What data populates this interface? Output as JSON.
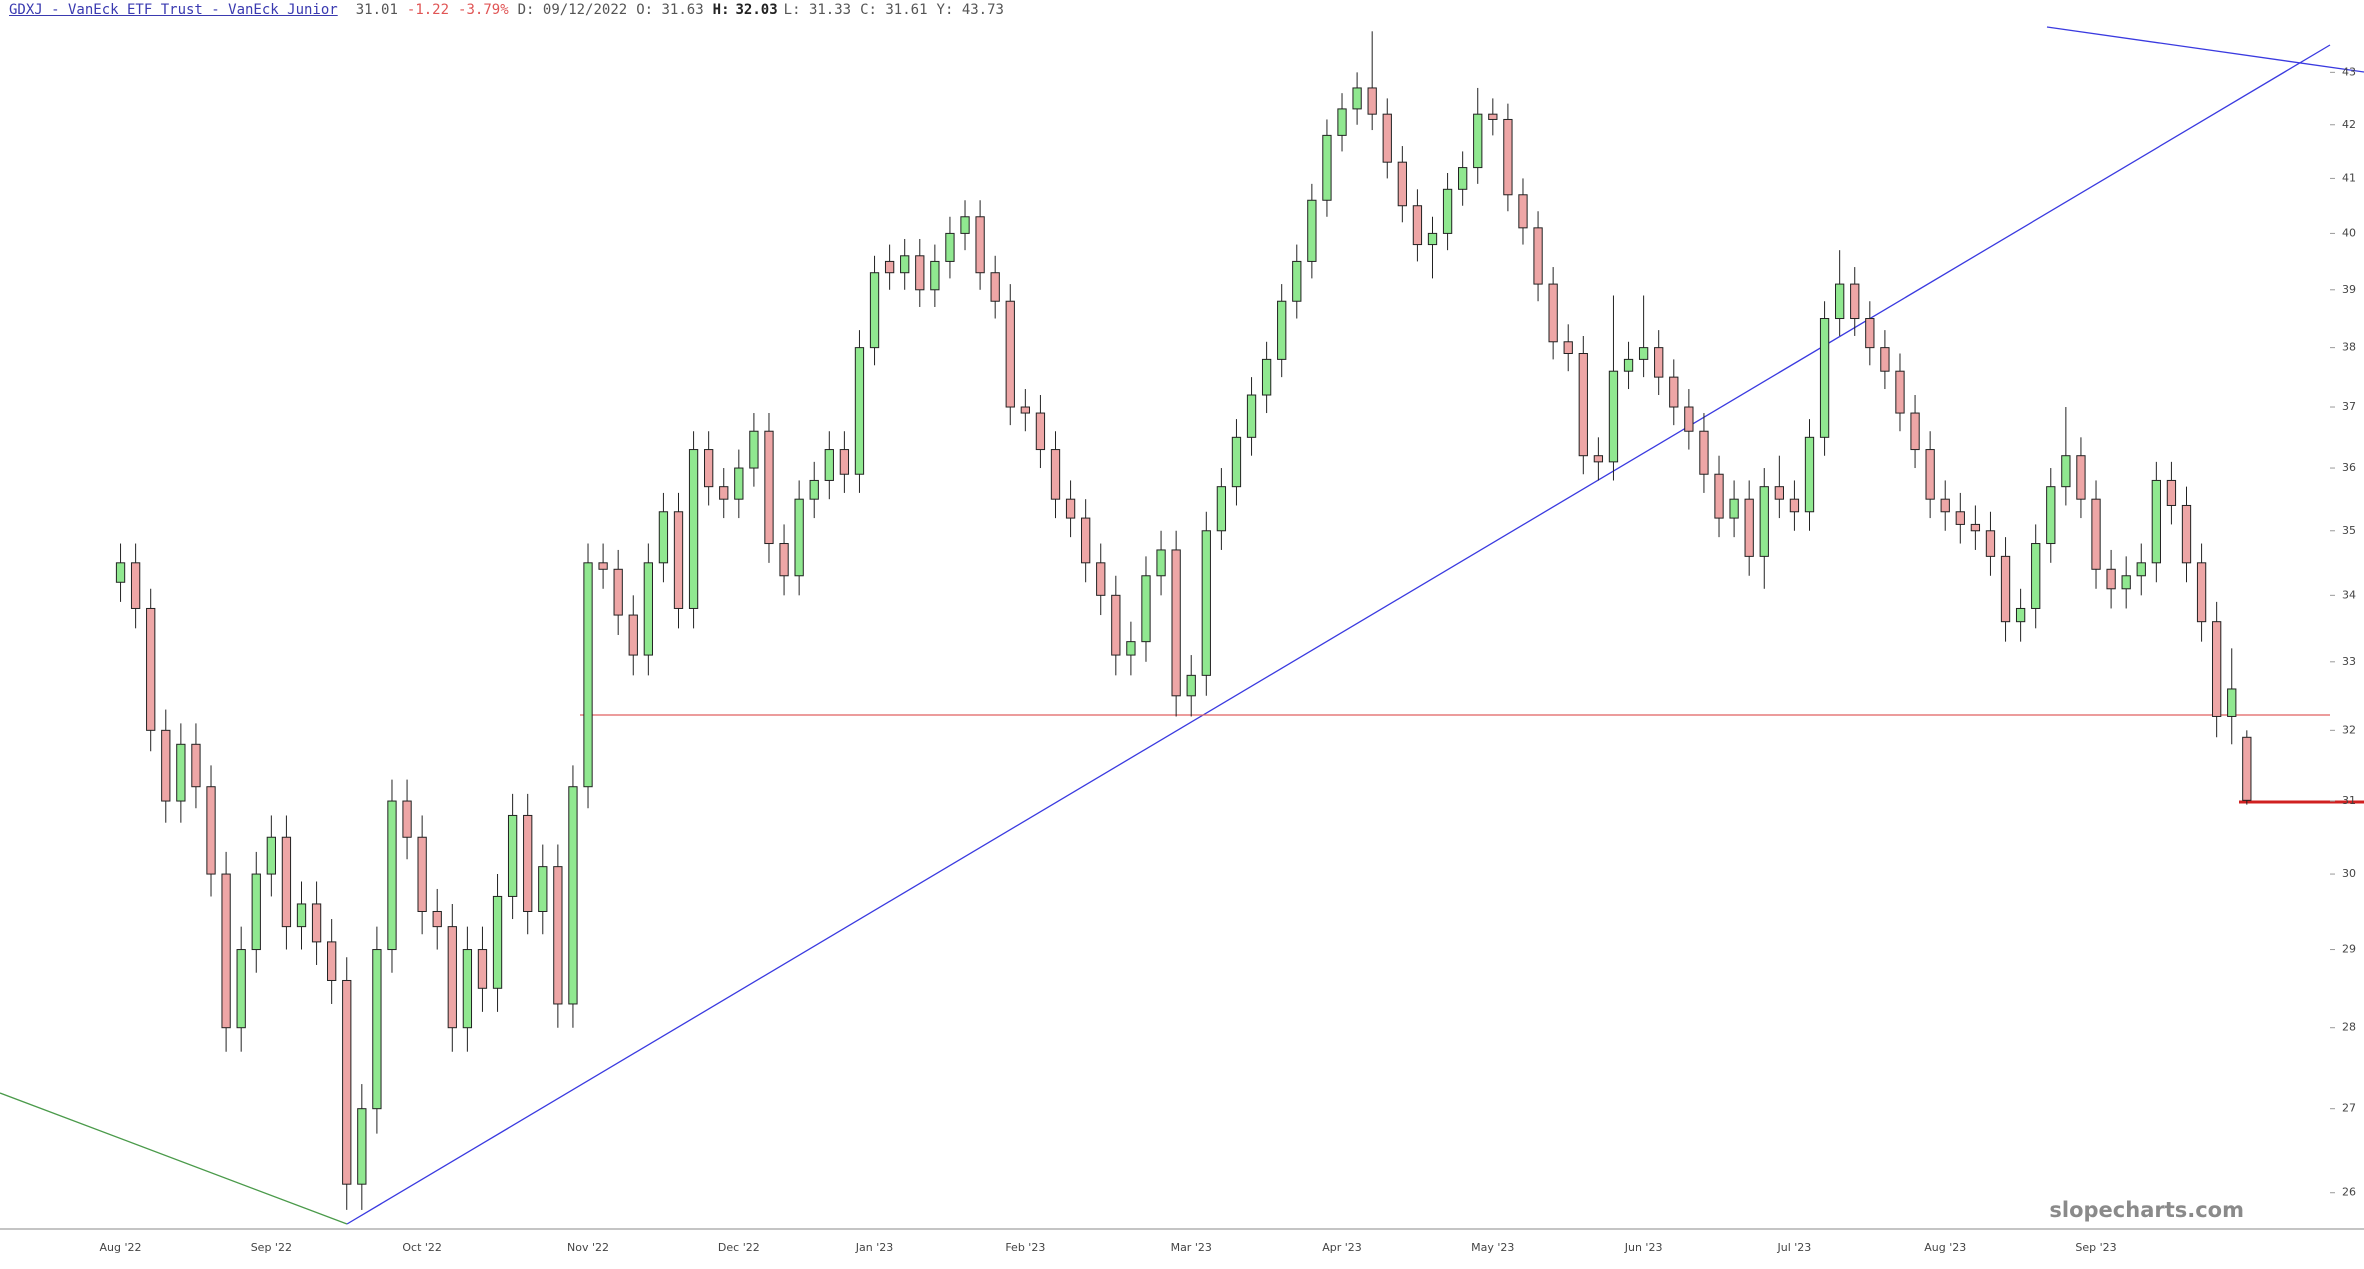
{
  "chart_data": {
    "type": "candlestick",
    "title": "GDXJ - VanEck ETF Trust - VanEck Junior",
    "quote": {
      "last": "31.01",
      "change": "-1.22",
      "change_pct": "-3.79%",
      "date": "D: 09/12/2022",
      "open": "O: 31.63",
      "high_label": "H:",
      "high": "32.03",
      "low": "L: 31.33",
      "close": "C: 31.61",
      "y": "Y: 43.73"
    },
    "watermark": "slopecharts.com",
    "log_scale": true,
    "ylim": [
      25.58,
      44.42
    ],
    "yticks": [
      26,
      27,
      28,
      29,
      30,
      31,
      32,
      33,
      34,
      35,
      36,
      37,
      38,
      39,
      40,
      41,
      42,
      43
    ],
    "up_color": "#90e890",
    "down_color": "#eea6a6",
    "categories": [
      "Aug '22",
      null,
      null,
      null,
      null,
      null,
      null,
      null,
      null,
      null,
      "Sep '22",
      null,
      null,
      null,
      null,
      null,
      null,
      null,
      null,
      null,
      "Oct '22",
      null,
      null,
      null,
      null,
      null,
      null,
      null,
      null,
      null,
      null,
      "Nov '22",
      null,
      null,
      null,
      null,
      null,
      null,
      null,
      null,
      null,
      "Dec '22",
      null,
      null,
      null,
      null,
      null,
      null,
      null,
      null,
      "Jan '23",
      null,
      null,
      null,
      null,
      null,
      null,
      null,
      null,
      null,
      "Feb '23",
      null,
      null,
      null,
      null,
      null,
      null,
      null,
      null,
      null,
      null,
      "Mar '23",
      null,
      null,
      null,
      null,
      null,
      null,
      null,
      null,
      null,
      "Apr '23",
      null,
      null,
      null,
      null,
      null,
      null,
      null,
      null,
      null,
      "May '23",
      null,
      null,
      null,
      null,
      null,
      null,
      null,
      null,
      null,
      "Jun '23",
      null,
      null,
      null,
      null,
      null,
      null,
      null,
      null,
      null,
      "Jul '23",
      null,
      null,
      null,
      null,
      null,
      null,
      null,
      null,
      null,
      "Aug '23",
      null,
      null,
      null,
      null,
      null,
      null,
      null,
      null,
      null,
      "Sep '23",
      null,
      null,
      null,
      null,
      null,
      null,
      null,
      null,
      null,
      null
    ],
    "series": [
      {
        "name": "GDXJ",
        "ohlc": [
          [
            34.2,
            34.8,
            33.9,
            34.5
          ],
          [
            34.5,
            34.8,
            33.5,
            33.8
          ],
          [
            33.8,
            34.1,
            31.7,
            32
          ],
          [
            32,
            32.3,
            30.7,
            31
          ],
          [
            31,
            32.1,
            30.7,
            31.8
          ],
          [
            31.8,
            32.1,
            30.9,
            31.2
          ],
          [
            31.2,
            31.5,
            29.7,
            30
          ],
          [
            30,
            30.3,
            27.7,
            28
          ],
          [
            28,
            29.3,
            27.7,
            29
          ],
          [
            29,
            30.3,
            28.7,
            30
          ],
          [
            30,
            30.8,
            29.7,
            30.5
          ],
          [
            30.5,
            30.8,
            29,
            29.3
          ],
          [
            29.3,
            29.9,
            29,
            29.6
          ],
          [
            29.6,
            29.9,
            28.8,
            29.1
          ],
          [
            29.1,
            29.4,
            28.3,
            28.6
          ],
          [
            28.6,
            28.9,
            25.8,
            26.1
          ],
          [
            26.1,
            27.3,
            25.8,
            27
          ],
          [
            27,
            29.3,
            26.7,
            29
          ],
          [
            29,
            31.3,
            28.7,
            31
          ],
          [
            31,
            31.3,
            30.2,
            30.5
          ],
          [
            30.5,
            30.8,
            29.2,
            29.5
          ],
          [
            29.5,
            29.8,
            29,
            29.3
          ],
          [
            29.3,
            29.6,
            27.7,
            28
          ],
          [
            28,
            29.3,
            27.7,
            29
          ],
          [
            29,
            29.3,
            28.2,
            28.5
          ],
          [
            28.5,
            30,
            28.2,
            29.7
          ],
          [
            29.7,
            31.1,
            29.4,
            30.8
          ],
          [
            30.8,
            31.1,
            29.2,
            29.5
          ],
          [
            29.5,
            30.4,
            29.2,
            30.1
          ],
          [
            30.1,
            30.4,
            28,
            28.3
          ],
          [
            28.3,
            31.5,
            28,
            31.2
          ],
          [
            31.2,
            34.8,
            30.9,
            34.5
          ],
          [
            34.5,
            34.8,
            34.1,
            34.4
          ],
          [
            34.4,
            34.7,
            33.4,
            33.7
          ],
          [
            33.7,
            34,
            32.8,
            33.1
          ],
          [
            33.1,
            34.8,
            32.8,
            34.5
          ],
          [
            34.5,
            35.6,
            34.2,
            35.3
          ],
          [
            35.3,
            35.6,
            33.5,
            33.8
          ],
          [
            33.8,
            36.6,
            33.5,
            36.3
          ],
          [
            36.3,
            36.6,
            35.4,
            35.7
          ],
          [
            35.7,
            36,
            35.2,
            35.5
          ],
          [
            35.5,
            36.3,
            35.2,
            36
          ],
          [
            36,
            36.9,
            35.7,
            36.6
          ],
          [
            36.6,
            36.9,
            34.5,
            34.8
          ],
          [
            34.8,
            35.1,
            34,
            34.3
          ],
          [
            34.3,
            35.8,
            34,
            35.5
          ],
          [
            35.5,
            36.1,
            35.2,
            35.8
          ],
          [
            35.8,
            36.6,
            35.5,
            36.3
          ],
          [
            36.3,
            36.6,
            35.6,
            35.9
          ],
          [
            35.9,
            38.3,
            35.6,
            38
          ],
          [
            38,
            39.6,
            37.7,
            39.3
          ],
          [
            39.5,
            39.8,
            39,
            39.3
          ],
          [
            39.3,
            39.9,
            39,
            39.6
          ],
          [
            39.6,
            39.9,
            38.7,
            39
          ],
          [
            39,
            39.8,
            38.7,
            39.5
          ],
          [
            39.5,
            40.3,
            39.2,
            40
          ],
          [
            40,
            40.6,
            39.7,
            40.3
          ],
          [
            40.3,
            40.6,
            39,
            39.3
          ],
          [
            39.3,
            39.6,
            38.5,
            38.8
          ],
          [
            38.8,
            39.1,
            36.7,
            37
          ],
          [
            37,
            37.3,
            36.6,
            36.9
          ],
          [
            36.9,
            37.2,
            36,
            36.3
          ],
          [
            36.3,
            36.6,
            35.2,
            35.5
          ],
          [
            35.5,
            35.8,
            34.9,
            35.2
          ],
          [
            35.2,
            35.5,
            34.2,
            34.5
          ],
          [
            34.5,
            34.8,
            33.7,
            34
          ],
          [
            34,
            34.3,
            32.8,
            33.1
          ],
          [
            33.1,
            33.6,
            32.8,
            33.3
          ],
          [
            33.3,
            34.6,
            33,
            34.3
          ],
          [
            34.3,
            35,
            34,
            34.7
          ],
          [
            34.7,
            35,
            32.2,
            32.5
          ],
          [
            32.5,
            33.1,
            32.2,
            32.8
          ],
          [
            32.8,
            35.3,
            32.5,
            35
          ],
          [
            35,
            36,
            34.7,
            35.7
          ],
          [
            35.7,
            36.8,
            35.4,
            36.5
          ],
          [
            36.5,
            37.5,
            36.2,
            37.2
          ],
          [
            37.2,
            38.1,
            36.9,
            37.8
          ],
          [
            37.8,
            39.1,
            37.5,
            38.8
          ],
          [
            38.8,
            39.8,
            38.5,
            39.5
          ],
          [
            39.5,
            40.9,
            39.2,
            40.6
          ],
          [
            40.6,
            42.1,
            40.3,
            41.8
          ],
          [
            41.8,
            42.6,
            41.5,
            42.3
          ],
          [
            42.3,
            43,
            42,
            42.7
          ],
          [
            42.7,
            43.8,
            41.9,
            42.2
          ],
          [
            42.2,
            42.5,
            41,
            41.3
          ],
          [
            41.3,
            41.6,
            40.2,
            40.5
          ],
          [
            40.5,
            40.8,
            39.5,
            39.8
          ],
          [
            39.8,
            40.3,
            39.2,
            40
          ],
          [
            40,
            41.1,
            39.7,
            40.8
          ],
          [
            40.8,
            41.5,
            40.5,
            41.2
          ],
          [
            41.2,
            42.7,
            40.9,
            42.2
          ],
          [
            42.2,
            42.5,
            41.8,
            42.1
          ],
          [
            42.1,
            42.4,
            40.4,
            40.7
          ],
          [
            40.7,
            41,
            39.8,
            40.1
          ],
          [
            40.1,
            40.4,
            38.8,
            39.1
          ],
          [
            39.1,
            39.4,
            37.8,
            38.1
          ],
          [
            38.1,
            38.4,
            37.6,
            37.9
          ],
          [
            37.9,
            38.2,
            35.9,
            36.2
          ],
          [
            36.2,
            36.5,
            35.8,
            36.1
          ],
          [
            36.1,
            38.9,
            35.8,
            37.6
          ],
          [
            37.6,
            38.1,
            37.3,
            37.8
          ],
          [
            37.8,
            38.9,
            37.5,
            38
          ],
          [
            38,
            38.3,
            37.2,
            37.5
          ],
          [
            37.5,
            37.8,
            36.7,
            37
          ],
          [
            37,
            37.3,
            36.3,
            36.6
          ],
          [
            36.6,
            36.9,
            35.6,
            35.9
          ],
          [
            35.9,
            36.2,
            34.9,
            35.2
          ],
          [
            35.2,
            35.8,
            34.9,
            35.5
          ],
          [
            35.5,
            35.8,
            34.3,
            34.6
          ],
          [
            34.6,
            36,
            34.1,
            35.7
          ],
          [
            35.7,
            36.2,
            35.2,
            35.5
          ],
          [
            35.5,
            35.8,
            35,
            35.3
          ],
          [
            35.3,
            36.8,
            35,
            36.5
          ],
          [
            36.5,
            38.8,
            36.2,
            38.5
          ],
          [
            38.5,
            39.7,
            38.2,
            39.1
          ],
          [
            39.1,
            39.4,
            38.2,
            38.5
          ],
          [
            38.5,
            38.8,
            37.7,
            38
          ],
          [
            38,
            38.3,
            37.3,
            37.6
          ],
          [
            37.6,
            37.9,
            36.6,
            36.9
          ],
          [
            36.9,
            37.2,
            36,
            36.3
          ],
          [
            36.3,
            36.6,
            35.2,
            35.5
          ],
          [
            35.5,
            35.8,
            35,
            35.3
          ],
          [
            35.3,
            35.6,
            34.8,
            35.1
          ],
          [
            35.1,
            35.4,
            34.7,
            35
          ],
          [
            35,
            35.3,
            34.3,
            34.6
          ],
          [
            34.6,
            34.9,
            33.3,
            33.6
          ],
          [
            33.6,
            34.1,
            33.3,
            33.8
          ],
          [
            33.8,
            35.1,
            33.5,
            34.8
          ],
          [
            34.8,
            36,
            34.5,
            35.7
          ],
          [
            35.7,
            37,
            35.4,
            36.2
          ],
          [
            36.2,
            36.5,
            35.2,
            35.5
          ],
          [
            35.5,
            35.8,
            34.1,
            34.4
          ],
          [
            34.4,
            34.7,
            33.8,
            34.1
          ],
          [
            34.1,
            34.6,
            33.8,
            34.3
          ],
          [
            34.3,
            34.8,
            34,
            34.5
          ],
          [
            34.5,
            36.1,
            34.2,
            35.8
          ],
          [
            35.8,
            36.1,
            35.1,
            35.4
          ],
          [
            35.4,
            35.7,
            34.2,
            34.5
          ],
          [
            34.5,
            34.8,
            33.3,
            33.6
          ],
          [
            33.6,
            33.9,
            31.9,
            32.2
          ],
          [
            32.2,
            33.2,
            31.8,
            32.6
          ],
          [
            31.9,
            32,
            30.95,
            31.01
          ]
        ]
      }
    ]
  }
}
